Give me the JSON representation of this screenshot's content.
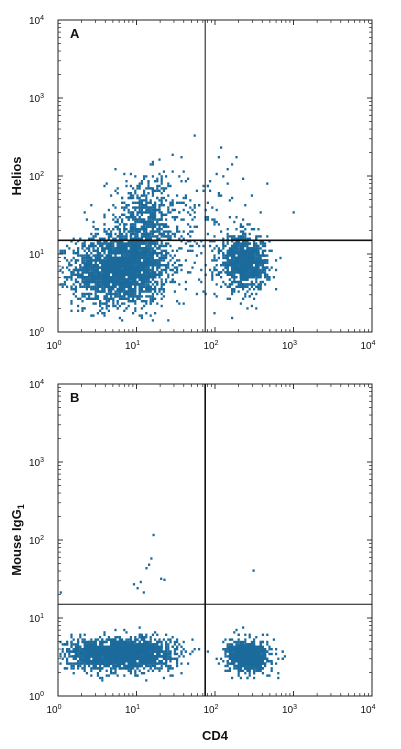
{
  "chart_data": [
    {
      "type": "scatter",
      "panel_label": "A",
      "xlabel": "",
      "ylabel": "Helios",
      "xscale": "log",
      "yscale": "log",
      "xlim": [
        1,
        10000
      ],
      "ylim": [
        1,
        10000
      ],
      "x_ticks": [
        {
          "base": "10",
          "exp": "0"
        },
        {
          "base": "10",
          "exp": "1"
        },
        {
          "base": "10",
          "exp": "2"
        },
        {
          "base": "10",
          "exp": "3"
        },
        {
          "base": "10",
          "exp": "4"
        }
      ],
      "y_ticks": [
        {
          "base": "10",
          "exp": "0"
        },
        {
          "base": "10",
          "exp": "1"
        },
        {
          "base": "10",
          "exp": "2"
        },
        {
          "base": "10",
          "exp": "3"
        },
        {
          "base": "10",
          "exp": "4"
        }
      ],
      "gates": {
        "x": 75,
        "y": 15
      },
      "point_color": "#1b6a9c",
      "clusters": [
        {
          "x_center": 6,
          "x_spread": 0.3,
          "y_center": 6.5,
          "y_spread": 0.22,
          "count": 2200
        },
        {
          "x_center": 13,
          "x_spread": 0.25,
          "y_center": 25,
          "y_spread": 0.3,
          "count": 700
        },
        {
          "x_center": 230,
          "x_spread": 0.15,
          "y_center": 8,
          "y_spread": 0.17,
          "count": 900
        },
        {
          "x_center": 90,
          "x_spread": 0.35,
          "y_center": 20,
          "y_spread": 0.45,
          "count": 120
        }
      ]
    },
    {
      "type": "scatter",
      "panel_label": "B",
      "xlabel": "CD4",
      "ylabel": "Mouse IgG",
      "ylabel_subscript": "1",
      "xscale": "log",
      "yscale": "log",
      "xlim": [
        1,
        10000
      ],
      "ylim": [
        1,
        10000
      ],
      "x_ticks": [
        {
          "base": "10",
          "exp": "0"
        },
        {
          "base": "10",
          "exp": "1"
        },
        {
          "base": "10",
          "exp": "2"
        },
        {
          "base": "10",
          "exp": "3"
        },
        {
          "base": "10",
          "exp": "4"
        }
      ],
      "y_ticks": [
        {
          "base": "10",
          "exp": "0"
        },
        {
          "base": "10",
          "exp": "1"
        },
        {
          "base": "10",
          "exp": "2"
        },
        {
          "base": "10",
          "exp": "3"
        },
        {
          "base": "10",
          "exp": "4"
        }
      ],
      "gates": {
        "x": 75,
        "y": 15
      },
      "point_color": "#1b6a9c",
      "clusters": [
        {
          "x_center": 6,
          "x_spread": 0.34,
          "y_center": 3.6,
          "y_spread": 0.1,
          "count": 2000
        },
        {
          "x_center": 260,
          "x_spread": 0.14,
          "y_center": 3.3,
          "y_spread": 0.1,
          "count": 800
        }
      ],
      "sparse_points": [
        {
          "x": 14,
          "y": 50
        },
        {
          "x": 16,
          "y": 120
        },
        {
          "x": 13,
          "y": 45
        },
        {
          "x": 11,
          "y": 30
        },
        {
          "x": 10,
          "y": 25
        },
        {
          "x": 12,
          "y": 22
        },
        {
          "x": 20,
          "y": 33
        },
        {
          "x": 22,
          "y": 32
        },
        {
          "x": 9,
          "y": 28
        },
        {
          "x": 300,
          "y": 42
        },
        {
          "x": 1.05,
          "y": 22
        },
        {
          "x": 15,
          "y": 60
        }
      ]
    }
  ]
}
